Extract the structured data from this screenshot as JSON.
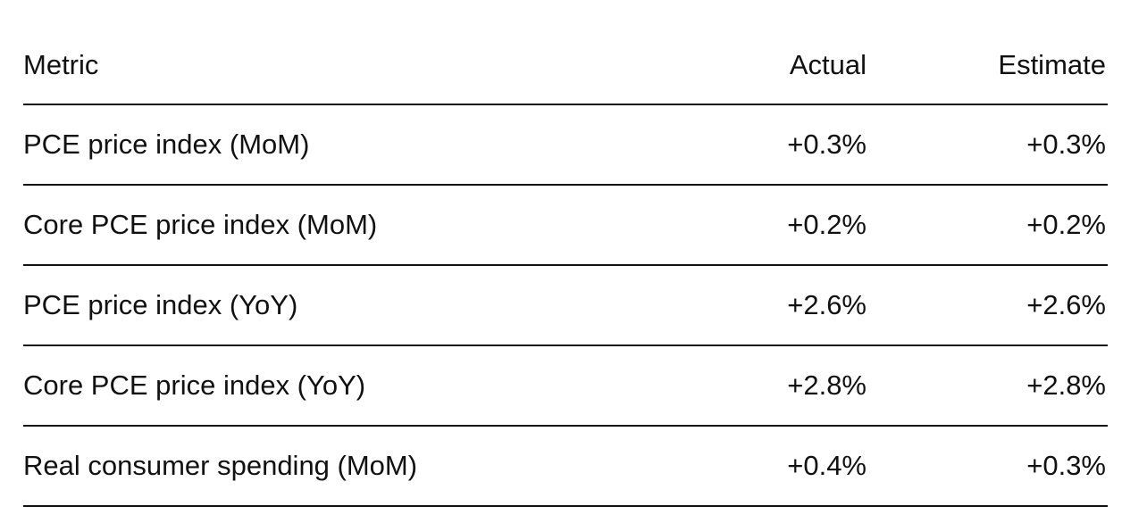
{
  "table": {
    "header": [
      "Metric",
      "Actual",
      "Estimate"
    ],
    "rows": [
      [
        "PCE price index (MoM)",
        "+0.3%",
        "+0.3%"
      ],
      [
        "Core PCE price index (MoM)",
        "+0.2%",
        "+0.2%"
      ],
      [
        "PCE price index (YoY)",
        "+2.6%",
        "+2.6%"
      ],
      [
        "Core PCE price index (YoY)",
        "+2.8%",
        "+2.8%"
      ],
      [
        "Real consumer spending (MoM)",
        "+0.4%",
        "+0.3%"
      ]
    ]
  }
}
